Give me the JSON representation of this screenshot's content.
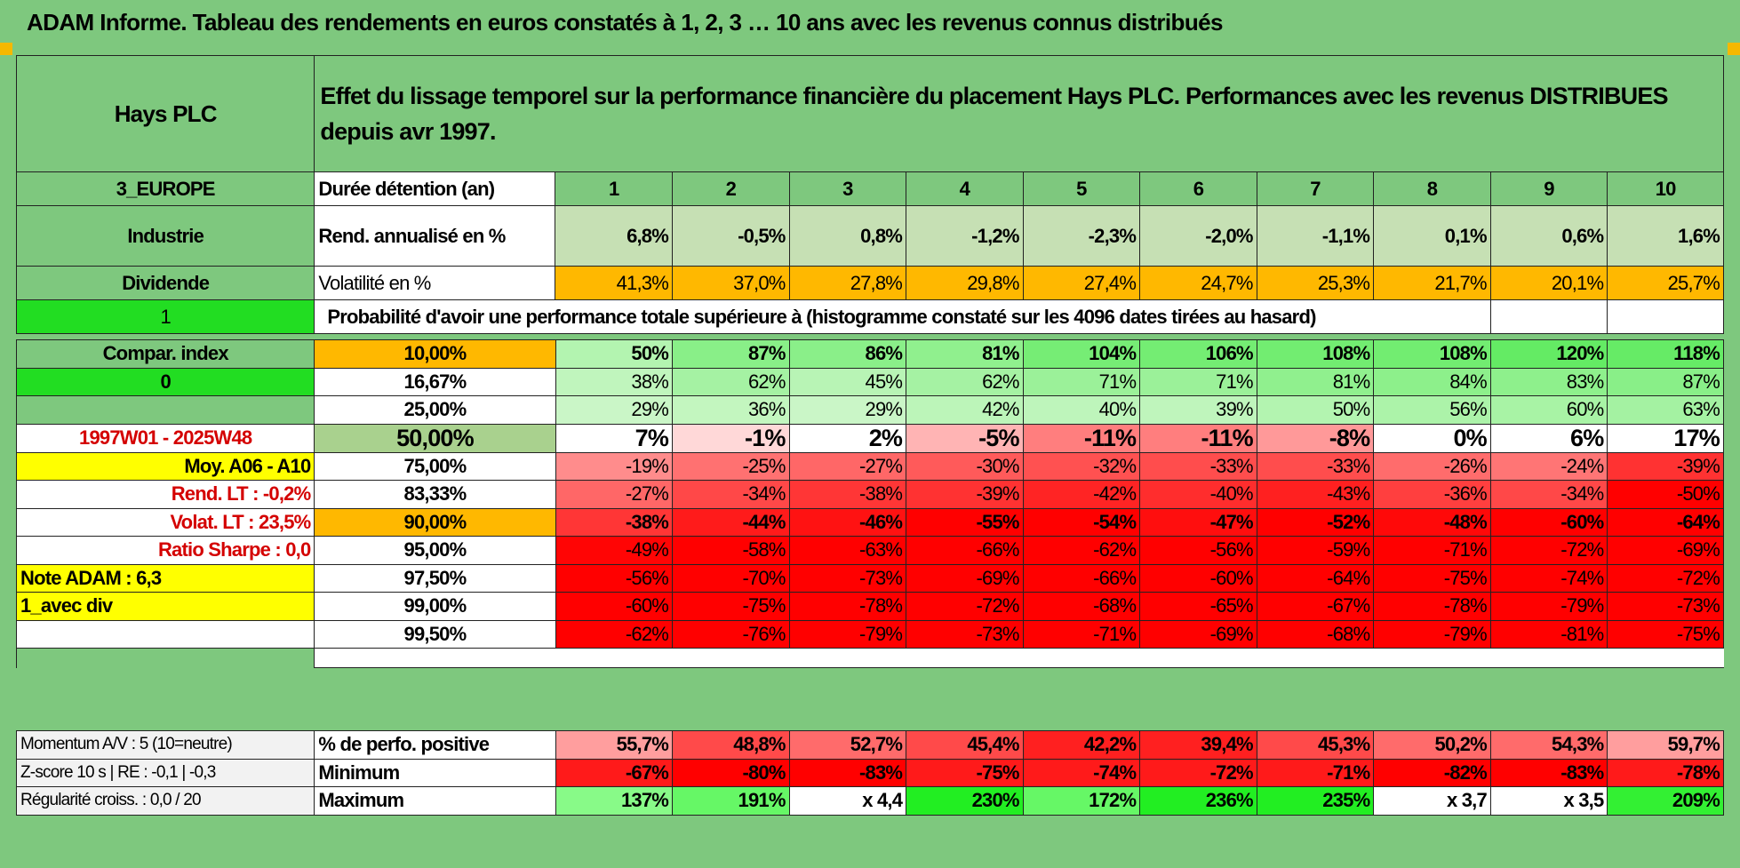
{
  "title": "ADAM Informe. Tableau des rendements en euros constatés à 1, 2, 3 … 10 ans avec les revenus connus distribués",
  "colors": {
    "header_green": "#7ec87e",
    "yellow": "#ffff00",
    "orange": "#ffb800",
    "bright_green": "#22dd22",
    "red": "#ff0000"
  },
  "left": {
    "name": "Hays PLC",
    "region": "3_EUROPE",
    "sector": "Industrie",
    "type": "Dividende",
    "value_1": "1",
    "compar": "Compar. index",
    "value_0": "0",
    "period": "1997W01 - 2025W48",
    "moy": "Moy. A06 - A10",
    "rend_lt": "Rend. LT :    -0,2%",
    "volat_lt": "Volat. LT :    23,5%",
    "sharpe": "Ratio Sharpe :    0,0",
    "note": "Note ADAM : 6,3",
    "avec_div": "1_avec div",
    "momentum": "Momentum A/V : 5 (10=neutre)",
    "zscore": "Z-score 10 s | RE : -0,1 | -0,3",
    "regularite": "Régularité croiss. : 0,0 / 20"
  },
  "header": {
    "text": "Effet du lissage temporel sur la performance financière du placement Hays PLC. Performances avec les revenus DISTRIBUES depuis avr 1997.",
    "duration_label": "Durée détention (an)",
    "years": [
      "1",
      "2",
      "3",
      "4",
      "5",
      "6",
      "7",
      "8",
      "9",
      "10"
    ]
  },
  "rend": {
    "label": "Rend. annualisé en %",
    "values": [
      "6,8%",
      "-0,5%",
      "0,8%",
      "-1,2%",
      "-2,3%",
      "-2,0%",
      "-1,1%",
      "0,1%",
      "0,6%",
      "1,6%"
    ]
  },
  "volat": {
    "label": "Volatilité en %",
    "values": [
      "41,3%",
      "37,0%",
      "27,8%",
      "29,8%",
      "27,4%",
      "24,7%",
      "25,3%",
      "21,7%",
      "20,1%",
      "25,7%"
    ]
  },
  "proba_title": "Probabilité d'avoir une performance totale supérieure à (histogramme constaté sur les 4096 dates tirées au hasard)",
  "quantiles": [
    {
      "label": "10,00%",
      "values": [
        "50%",
        "87%",
        "86%",
        "81%",
        "104%",
        "106%",
        "108%",
        "108%",
        "120%",
        "118%"
      ]
    },
    {
      "label": "16,67%",
      "values": [
        "38%",
        "62%",
        "45%",
        "62%",
        "71%",
        "71%",
        "81%",
        "84%",
        "83%",
        "87%"
      ]
    },
    {
      "label": "25,00%",
      "values": [
        "29%",
        "36%",
        "29%",
        "42%",
        "40%",
        "39%",
        "50%",
        "56%",
        "60%",
        "63%"
      ]
    },
    {
      "label": "50,00%",
      "values": [
        "7%",
        "-1%",
        "2%",
        "-5%",
        "-11%",
        "-11%",
        "-8%",
        "0%",
        "6%",
        "17%"
      ]
    },
    {
      "label": "75,00%",
      "values": [
        "-19%",
        "-25%",
        "-27%",
        "-30%",
        "-32%",
        "-33%",
        "-33%",
        "-26%",
        "-24%",
        "-39%"
      ]
    },
    {
      "label": "83,33%",
      "values": [
        "-27%",
        "-34%",
        "-38%",
        "-39%",
        "-42%",
        "-40%",
        "-43%",
        "-36%",
        "-34%",
        "-50%"
      ]
    },
    {
      "label": "90,00%",
      "values": [
        "-38%",
        "-44%",
        "-46%",
        "-55%",
        "-54%",
        "-47%",
        "-52%",
        "-48%",
        "-60%",
        "-64%"
      ]
    },
    {
      "label": "95,00%",
      "values": [
        "-49%",
        "-58%",
        "-63%",
        "-66%",
        "-62%",
        "-56%",
        "-59%",
        "-71%",
        "-72%",
        "-69%"
      ]
    },
    {
      "label": "97,50%",
      "values": [
        "-56%",
        "-70%",
        "-73%",
        "-69%",
        "-66%",
        "-60%",
        "-64%",
        "-75%",
        "-74%",
        "-72%"
      ]
    },
    {
      "label": "99,00%",
      "values": [
        "-60%",
        "-75%",
        "-78%",
        "-72%",
        "-68%",
        "-65%",
        "-67%",
        "-78%",
        "-79%",
        "-73%"
      ]
    },
    {
      "label": "99,50%",
      "values": [
        "-62%",
        "-76%",
        "-79%",
        "-73%",
        "-71%",
        "-69%",
        "-68%",
        "-79%",
        "-81%",
        "-75%"
      ]
    }
  ],
  "positive": {
    "label": "% de perfo. positive",
    "values": [
      "55,7%",
      "48,8%",
      "52,7%",
      "45,4%",
      "42,2%",
      "39,4%",
      "45,3%",
      "50,2%",
      "54,3%",
      "59,7%"
    ]
  },
  "minimum": {
    "label": "Minimum",
    "values": [
      "-67%",
      "-80%",
      "-83%",
      "-75%",
      "-74%",
      "-72%",
      "-71%",
      "-82%",
      "-83%",
      "-78%"
    ]
  },
  "maximum": {
    "label": "Maximum",
    "values": [
      "137%",
      "191%",
      "x 4,4",
      "230%",
      "172%",
      "236%",
      "235%",
      "x 3,7",
      "x 3,5",
      "209%"
    ]
  }
}
